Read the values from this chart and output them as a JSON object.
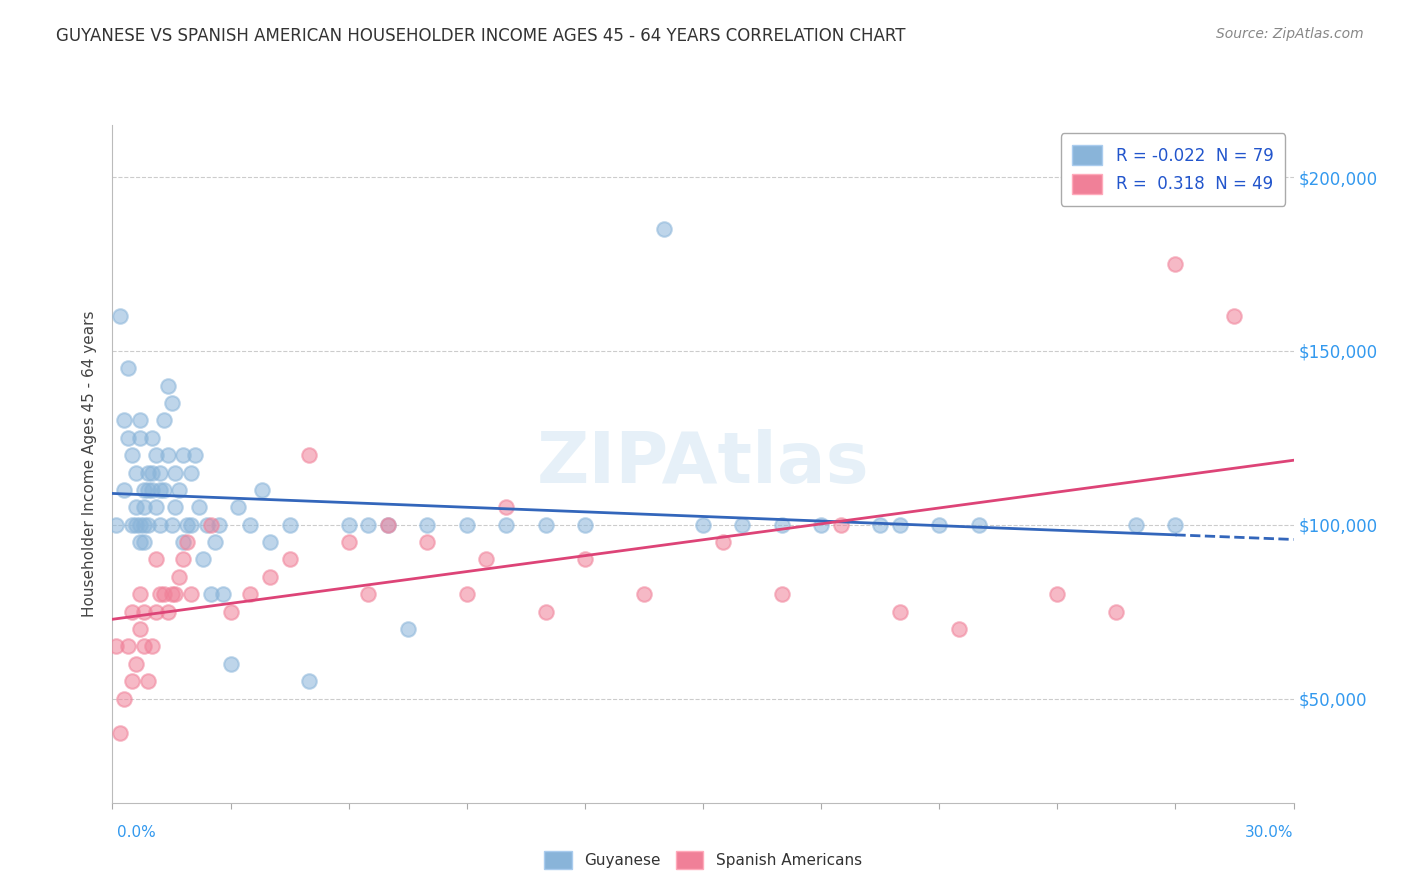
{
  "title": "GUYANESE VS SPANISH AMERICAN HOUSEHOLDER INCOME AGES 45 - 64 YEARS CORRELATION CHART",
  "source_text": "Source: ZipAtlas.com",
  "ylabel": "Householder Income Ages 45 - 64 years",
  "ytick_labels": [
    "$50,000",
    "$100,000",
    "$150,000",
    "$200,000"
  ],
  "ytick_values": [
    50000,
    100000,
    150000,
    200000
  ],
  "xmin": 0.0,
  "xmax": 0.3,
  "ymin": 20000,
  "ymax": 215000,
  "legend_entry1": "R = -0.022  N = 79",
  "legend_entry2": "R =  0.318  N = 49",
  "legend_labels": [
    "Guyanese",
    "Spanish Americans"
  ],
  "guyanese_color": "#89b4d9",
  "spanish_color": "#f08098",
  "regression_blue": "#3366bb",
  "regression_pink": "#dd4477",
  "watermark": "ZIPAtlas",
  "guyanese_x": [
    0.001,
    0.002,
    0.003,
    0.003,
    0.004,
    0.004,
    0.005,
    0.005,
    0.006,
    0.006,
    0.006,
    0.007,
    0.007,
    0.007,
    0.007,
    0.008,
    0.008,
    0.008,
    0.008,
    0.009,
    0.009,
    0.009,
    0.01,
    0.01,
    0.01,
    0.011,
    0.011,
    0.012,
    0.012,
    0.012,
    0.013,
    0.013,
    0.014,
    0.014,
    0.015,
    0.015,
    0.016,
    0.016,
    0.017,
    0.018,
    0.018,
    0.019,
    0.02,
    0.02,
    0.021,
    0.022,
    0.023,
    0.024,
    0.025,
    0.026,
    0.027,
    0.028,
    0.03,
    0.032,
    0.035,
    0.038,
    0.04,
    0.045,
    0.05,
    0.06,
    0.065,
    0.07,
    0.075,
    0.08,
    0.09,
    0.1,
    0.11,
    0.12,
    0.14,
    0.15,
    0.16,
    0.17,
    0.18,
    0.195,
    0.2,
    0.21,
    0.22,
    0.26,
    0.27
  ],
  "guyanese_y": [
    100000,
    160000,
    130000,
    110000,
    145000,
    125000,
    120000,
    100000,
    115000,
    105000,
    100000,
    130000,
    125000,
    100000,
    95000,
    110000,
    105000,
    100000,
    95000,
    115000,
    110000,
    100000,
    125000,
    115000,
    110000,
    120000,
    105000,
    115000,
    110000,
    100000,
    130000,
    110000,
    140000,
    120000,
    135000,
    100000,
    115000,
    105000,
    110000,
    120000,
    95000,
    100000,
    115000,
    100000,
    120000,
    105000,
    90000,
    100000,
    80000,
    95000,
    100000,
    80000,
    60000,
    105000,
    100000,
    110000,
    95000,
    100000,
    55000,
    100000,
    100000,
    100000,
    70000,
    100000,
    100000,
    100000,
    100000,
    100000,
    185000,
    100000,
    100000,
    100000,
    100000,
    100000,
    100000,
    100000,
    100000,
    100000,
    100000
  ],
  "spanish_x": [
    0.001,
    0.002,
    0.003,
    0.004,
    0.005,
    0.005,
    0.006,
    0.007,
    0.007,
    0.008,
    0.008,
    0.009,
    0.01,
    0.011,
    0.011,
    0.012,
    0.013,
    0.014,
    0.015,
    0.016,
    0.017,
    0.018,
    0.019,
    0.02,
    0.025,
    0.03,
    0.035,
    0.04,
    0.045,
    0.05,
    0.06,
    0.065,
    0.07,
    0.08,
    0.09,
    0.095,
    0.1,
    0.11,
    0.12,
    0.135,
    0.155,
    0.17,
    0.185,
    0.2,
    0.215,
    0.24,
    0.255,
    0.27,
    0.285
  ],
  "spanish_y": [
    65000,
    40000,
    50000,
    65000,
    55000,
    75000,
    60000,
    70000,
    80000,
    65000,
    75000,
    55000,
    65000,
    90000,
    75000,
    80000,
    80000,
    75000,
    80000,
    80000,
    85000,
    90000,
    95000,
    80000,
    100000,
    75000,
    80000,
    85000,
    90000,
    120000,
    95000,
    80000,
    100000,
    95000,
    80000,
    90000,
    105000,
    75000,
    90000,
    80000,
    95000,
    80000,
    100000,
    75000,
    70000,
    80000,
    75000,
    175000,
    160000
  ]
}
